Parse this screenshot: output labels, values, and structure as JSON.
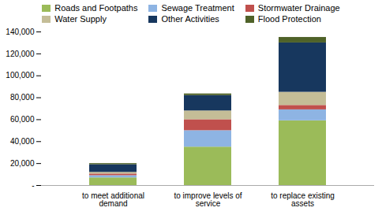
{
  "chart_data": {
    "type": "bar",
    "stacked": true,
    "grid": false,
    "legend": "top",
    "categories": [
      "to meet additional\ndemand",
      "to improve levels of\nservice",
      "to replace existing\nassets"
    ],
    "series": [
      {
        "name": "Roads and Footpaths",
        "color": "#9BBB59",
        "values": [
          7000,
          35000,
          59000
        ]
      },
      {
        "name": "Sewage Treatment",
        "color": "#8EB4E3",
        "values": [
          2000,
          15000,
          10000
        ]
      },
      {
        "name": "Stormwater Drainage",
        "color": "#C0504D",
        "values": [
          1500,
          10000,
          4000
        ]
      },
      {
        "name": "Water Supply",
        "color": "#C4BD97",
        "values": [
          1500,
          8000,
          12000
        ]
      },
      {
        "name": "Other Activities",
        "color": "#17375E",
        "values": [
          7000,
          14000,
          45000
        ]
      },
      {
        "name": "Flood Protection",
        "color": "#4F6228",
        "values": [
          1000,
          1500,
          5000
        ]
      }
    ],
    "ylim": [
      0,
      140000
    ],
    "yticks": [
      {
        "value": 0,
        "label": "-"
      },
      {
        "value": 20000,
        "label": "20,000"
      },
      {
        "value": 40000,
        "label": "40,000"
      },
      {
        "value": 60000,
        "label": "60,000"
      },
      {
        "value": 80000,
        "label": "80,000"
      },
      {
        "value": 100000,
        "label": "100,000"
      },
      {
        "value": 120000,
        "label": "120,000"
      },
      {
        "value": 140000,
        "label": "140,000"
      }
    ]
  }
}
